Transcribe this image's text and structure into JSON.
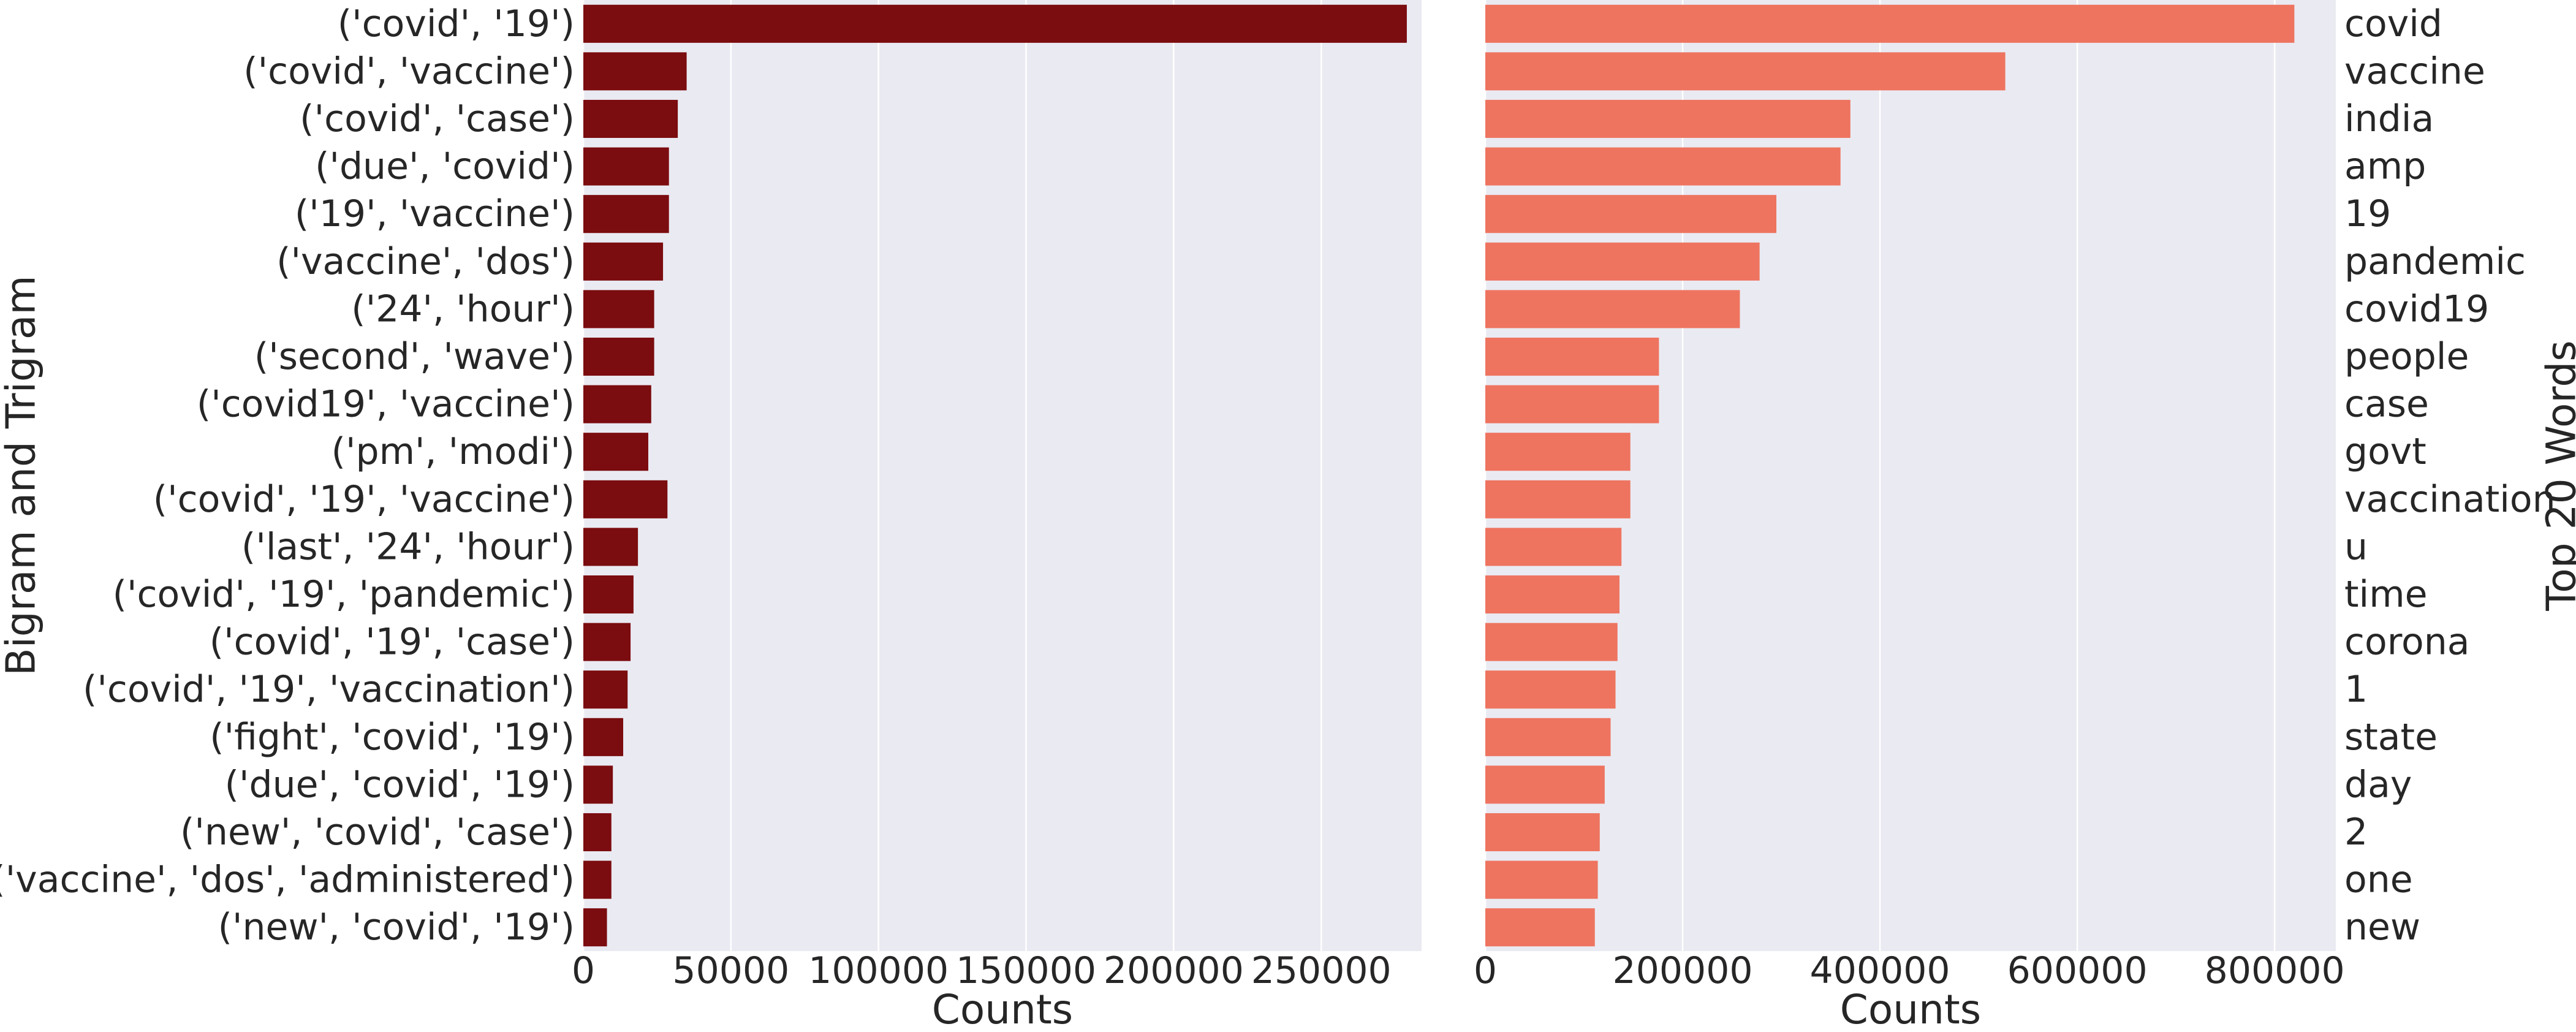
{
  "chart_data": [
    {
      "type": "bar",
      "orientation": "horizontal",
      "xlabel": "Counts",
      "ylabel": "Bigram and Trigram",
      "xlim": [
        0,
        284000
      ],
      "xticks": [
        0,
        50000,
        100000,
        150000,
        200000,
        250000
      ],
      "grid": true,
      "bar_color": "#7b0c0f",
      "ylabel_position": "left",
      "categories": [
        "('covid', '19')",
        "('covid', 'vaccine')",
        "('covid', 'case')",
        "('due', 'covid')",
        "('19', 'vaccine')",
        "('vaccine', 'dos')",
        "('24', 'hour')",
        "('second', 'wave')",
        "('covid19', 'vaccine')",
        "('pm', 'modi')",
        "('covid', '19', 'vaccine')",
        "('last', '24', 'hour')",
        "('covid', '19', 'pandemic')",
        "('covid', '19', 'case')",
        "('covid', '19', 'vaccination')",
        "('fight', 'covid', '19')",
        "('due', 'covid', '19')",
        "('new', 'covid', 'case')",
        "('vaccine', 'dos', 'administered')",
        "('new', 'covid', '19')"
      ],
      "values": [
        279000,
        35000,
        32000,
        29000,
        29000,
        27000,
        24000,
        24000,
        23000,
        22000,
        28500,
        18500,
        17000,
        16000,
        15000,
        13500,
        10000,
        9500,
        9500,
        8000
      ]
    },
    {
      "type": "bar",
      "orientation": "horizontal",
      "xlabel": "Counts",
      "ylabel": "Top 20 Words",
      "xlim": [
        0,
        862000
      ],
      "xticks": [
        0,
        200000,
        400000,
        600000,
        800000
      ],
      "grid": true,
      "bar_color": "#ee7460",
      "ylabel_position": "right",
      "categories": [
        "covid",
        "vaccine",
        "india",
        "amp",
        "19",
        "pandemic",
        "covid19",
        "people",
        "case",
        "govt",
        "vaccination",
        "u",
        "time",
        "corona",
        "1",
        "state",
        "day",
        "2",
        "one",
        "new"
      ],
      "values": [
        820000,
        527000,
        370000,
        360000,
        295000,
        278000,
        258000,
        176000,
        176000,
        147000,
        147000,
        138000,
        136000,
        134000,
        132000,
        127000,
        121000,
        116000,
        114000,
        111000
      ]
    }
  ]
}
